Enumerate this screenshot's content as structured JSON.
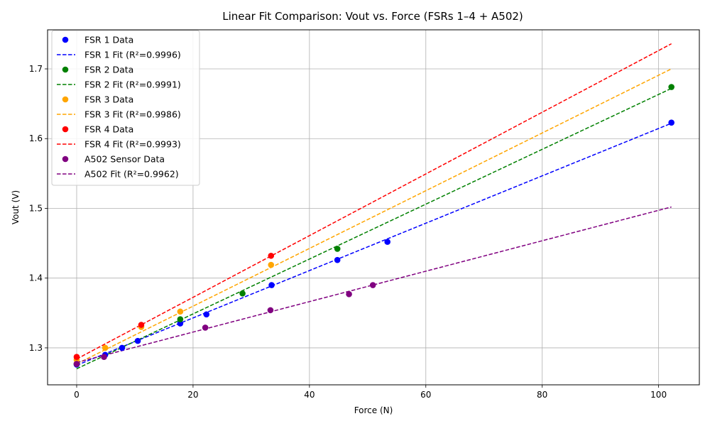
{
  "chart_data": {
    "type": "scatter",
    "title": "Linear Fit Comparison: Vout vs. Force (FSRs 1–4 + A502)",
    "xlabel": "Force (N)",
    "ylabel": "Vout (V)",
    "xlim": [
      -5,
      107
    ],
    "ylim": [
      1.247,
      1.756
    ],
    "xticks": [
      0,
      20,
      40,
      60,
      80,
      100
    ],
    "yticks": [
      1.3,
      1.4,
      1.5,
      1.6,
      1.7
    ],
    "xtick_labels": [
      "0",
      "20",
      "40",
      "60",
      "80",
      "100"
    ],
    "ytick_labels": [
      "1.3",
      "1.4",
      "1.5",
      "1.6",
      "1.7"
    ],
    "grid": true,
    "legend_position": "top-left",
    "series": [
      {
        "name": "FSR 1 Data",
        "fit_name": "FSR 1 Fit (R²=0.9996)",
        "color": "#0000ff",
        "points": [
          [
            0,
            1.276
          ],
          [
            4.9,
            1.29
          ],
          [
            7.8,
            1.3
          ],
          [
            10.5,
            1.31
          ],
          [
            17.8,
            1.335
          ],
          [
            22.3,
            1.348
          ],
          [
            33.5,
            1.39
          ],
          [
            44.8,
            1.426
          ],
          [
            53.4,
            1.452
          ],
          [
            102.2,
            1.623
          ]
        ],
        "fit": {
          "x": [
            0,
            102.2
          ],
          "y": [
            1.275,
            1.622
          ]
        }
      },
      {
        "name": "FSR 2 Data",
        "fit_name": "FSR 2 Fit (R²=0.9991)",
        "color": "#008000",
        "points": [
          [
            0,
            1.277
          ],
          [
            17.8,
            1.341
          ],
          [
            28.5,
            1.378
          ],
          [
            44.8,
            1.442
          ],
          [
            102.2,
            1.674
          ]
        ],
        "fit": {
          "x": [
            0,
            102.2
          ],
          "y": [
            1.27,
            1.672
          ]
        }
      },
      {
        "name": "FSR 3 Data",
        "fit_name": "FSR 3 Fit (R²=0.9986)",
        "color": "#ffa500",
        "points": [
          [
            0,
            1.283
          ],
          [
            4.9,
            1.3
          ],
          [
            11.1,
            1.33
          ],
          [
            17.8,
            1.352
          ],
          [
            33.4,
            1.419
          ]
        ],
        "fit": {
          "x": [
            0,
            102.2
          ],
          "y": [
            1.277,
            1.7
          ]
        }
      },
      {
        "name": "FSR 4 Data",
        "fit_name": "FSR 4 Fit (R²=0.9993)",
        "color": "#ff0000",
        "points": [
          [
            0,
            1.287
          ],
          [
            11.1,
            1.333
          ],
          [
            33.4,
            1.432
          ]
        ],
        "fit": {
          "x": [
            0,
            102.2
          ],
          "y": [
            1.284,
            1.736
          ]
        }
      },
      {
        "name": "A502 Sensor Data",
        "fit_name": "A502 Fit (R²=0.9962)",
        "color": "#800080",
        "points": [
          [
            0,
            1.277
          ],
          [
            4.7,
            1.287
          ],
          [
            22.1,
            1.329
          ],
          [
            33.3,
            1.354
          ],
          [
            46.8,
            1.377
          ],
          [
            50.9,
            1.39
          ]
        ],
        "fit": {
          "x": [
            0,
            102.2
          ],
          "y": [
            1.279,
            1.502
          ]
        }
      }
    ]
  }
}
